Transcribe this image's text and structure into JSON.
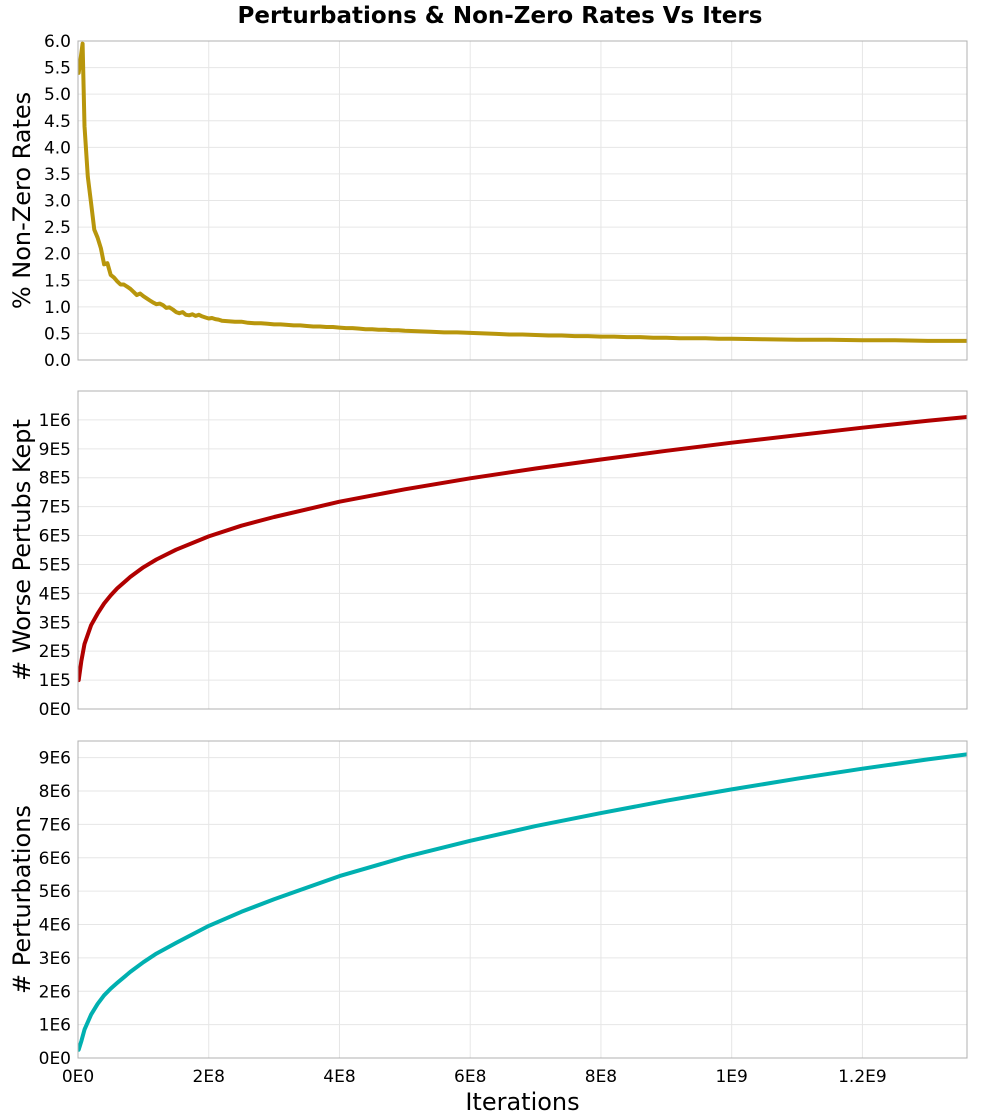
{
  "chart_data": {
    "title": "Perturbations & Non-Zero Rates Vs Iters",
    "xlabel": "Iterations",
    "x_ticks": [
      {
        "value": 0,
        "label": "0E0"
      },
      {
        "value": 200000000,
        "label": "2E8"
      },
      {
        "value": 400000000,
        "label": "4E8"
      },
      {
        "value": 600000000,
        "label": "6E8"
      },
      {
        "value": 800000000,
        "label": "8E8"
      },
      {
        "value": 1000000000,
        "label": "1E9"
      },
      {
        "value": 1200000000,
        "label": "1.2E9"
      }
    ],
    "xlim": [
      0,
      1360000000
    ],
    "grid": true,
    "panels": [
      {
        "type": "line",
        "ylabel": "% Non-Zero Rates",
        "color": "#b8960c",
        "ylim": [
          0,
          6.0
        ],
        "y_ticks": [
          {
            "value": 0.0,
            "label": "0.0"
          },
          {
            "value": 0.5,
            "label": "0.5"
          },
          {
            "value": 1.0,
            "label": "1.0"
          },
          {
            "value": 1.5,
            "label": "1.5"
          },
          {
            "value": 2.0,
            "label": "2.0"
          },
          {
            "value": 2.5,
            "label": "2.5"
          },
          {
            "value": 3.0,
            "label": "3.0"
          },
          {
            "value": 3.5,
            "label": "3.5"
          },
          {
            "value": 4.0,
            "label": "4.0"
          },
          {
            "value": 4.5,
            "label": "4.5"
          },
          {
            "value": 5.0,
            "label": "5.0"
          },
          {
            "value": 5.5,
            "label": "5.5"
          },
          {
            "value": 6.0,
            "label": "6.0"
          }
        ],
        "x": [
          1000000,
          7000000,
          10000000,
          15000000,
          20000000,
          25000000,
          30000000,
          35000000,
          40000000,
          45000000,
          50000000,
          55000000,
          60000000,
          65000000,
          70000000,
          75000000,
          80000000,
          85000000,
          90000000,
          95000000,
          100000000,
          105000000,
          110000000,
          115000000,
          120000000,
          125000000,
          130000000,
          135000000,
          140000000,
          145000000,
          150000000,
          155000000,
          160000000,
          165000000,
          170000000,
          175000000,
          180000000,
          185000000,
          190000000,
          195000000,
          200000000,
          205000000,
          210000000,
          215000000,
          220000000,
          230000000,
          240000000,
          250000000,
          260000000,
          270000000,
          280000000,
          290000000,
          300000000,
          310000000,
          320000000,
          330000000,
          340000000,
          350000000,
          360000000,
          370000000,
          380000000,
          390000000,
          400000000,
          410000000,
          420000000,
          430000000,
          440000000,
          450000000,
          460000000,
          470000000,
          480000000,
          490000000,
          500000000,
          520000000,
          540000000,
          560000000,
          580000000,
          600000000,
          620000000,
          640000000,
          660000000,
          680000000,
          700000000,
          720000000,
          740000000,
          760000000,
          780000000,
          800000000,
          820000000,
          840000000,
          860000000,
          880000000,
          900000000,
          920000000,
          940000000,
          960000000,
          980000000,
          1000000000,
          1050000000,
          1100000000,
          1150000000,
          1200000000,
          1250000000,
          1300000000,
          1360000000
        ],
        "y": [
          5.4,
          5.95,
          4.4,
          3.45,
          2.95,
          2.45,
          2.3,
          2.1,
          1.8,
          1.82,
          1.6,
          1.55,
          1.48,
          1.42,
          1.42,
          1.38,
          1.34,
          1.28,
          1.22,
          1.25,
          1.2,
          1.16,
          1.12,
          1.08,
          1.05,
          1.06,
          1.03,
          0.98,
          0.99,
          0.95,
          0.9,
          0.88,
          0.9,
          0.85,
          0.84,
          0.86,
          0.83,
          0.85,
          0.82,
          0.8,
          0.78,
          0.79,
          0.77,
          0.76,
          0.74,
          0.73,
          0.72,
          0.72,
          0.7,
          0.69,
          0.69,
          0.68,
          0.67,
          0.67,
          0.66,
          0.65,
          0.65,
          0.64,
          0.63,
          0.63,
          0.62,
          0.62,
          0.61,
          0.6,
          0.6,
          0.59,
          0.58,
          0.58,
          0.57,
          0.57,
          0.56,
          0.56,
          0.55,
          0.54,
          0.53,
          0.52,
          0.52,
          0.51,
          0.5,
          0.49,
          0.48,
          0.48,
          0.47,
          0.46,
          0.46,
          0.45,
          0.45,
          0.44,
          0.44,
          0.43,
          0.43,
          0.42,
          0.42,
          0.41,
          0.41,
          0.41,
          0.4,
          0.4,
          0.39,
          0.38,
          0.38,
          0.37,
          0.37,
          0.36,
          0.36
        ]
      },
      {
        "type": "line",
        "ylabel": "# Worse Pertubs Kept",
        "color": "#b00000",
        "ylim": [
          0,
          1100000
        ],
        "y_ticks": [
          {
            "value": 0,
            "label": "0E0"
          },
          {
            "value": 100000,
            "label": "1E5"
          },
          {
            "value": 200000,
            "label": "2E5"
          },
          {
            "value": 300000,
            "label": "3E5"
          },
          {
            "value": 400000,
            "label": "4E5"
          },
          {
            "value": 500000,
            "label": "5E5"
          },
          {
            "value": 600000,
            "label": "6E5"
          },
          {
            "value": 700000,
            "label": "7E5"
          },
          {
            "value": 800000,
            "label": "8E5"
          },
          {
            "value": 900000,
            "label": "9E5"
          },
          {
            "value": 1000000,
            "label": "1E6"
          }
        ],
        "x": [
          1000000,
          5000000,
          10000000,
          20000000,
          30000000,
          40000000,
          50000000,
          60000000,
          80000000,
          100000000,
          120000000,
          150000000,
          200000000,
          250000000,
          300000000,
          400000000,
          500000000,
          600000000,
          700000000,
          800000000,
          900000000,
          1000000000,
          1100000000,
          1200000000,
          1300000000,
          1360000000
        ],
        "y": [
          100000,
          165000,
          225000,
          290000,
          330000,
          365000,
          393000,
          417000,
          457000,
          490000,
          517000,
          551000,
          597000,
          634000,
          664000,
          717000,
          760000,
          798000,
          832000,
          863000,
          893000,
          921000,
          947000,
          973000,
          997000,
          1010000
        ]
      },
      {
        "type": "line",
        "ylabel": "# Perturbations",
        "color": "#00b0b0",
        "ylim": [
          0,
          9500000
        ],
        "y_ticks": [
          {
            "value": 0,
            "label": "0E0"
          },
          {
            "value": 1000000,
            "label": "1E6"
          },
          {
            "value": 2000000,
            "label": "2E6"
          },
          {
            "value": 3000000,
            "label": "3E6"
          },
          {
            "value": 4000000,
            "label": "4E6"
          },
          {
            "value": 5000000,
            "label": "5E6"
          },
          {
            "value": 6000000,
            "label": "6E6"
          },
          {
            "value": 7000000,
            "label": "7E6"
          },
          {
            "value": 8000000,
            "label": "8E6"
          },
          {
            "value": 9000000,
            "label": "9E6"
          }
        ],
        "x": [
          1000000,
          5000000,
          10000000,
          20000000,
          30000000,
          40000000,
          50000000,
          60000000,
          80000000,
          100000000,
          120000000,
          150000000,
          200000000,
          250000000,
          300000000,
          400000000,
          500000000,
          600000000,
          700000000,
          800000000,
          900000000,
          1000000000,
          1100000000,
          1200000000,
          1300000000,
          1360000000
        ],
        "y": [
          250000,
          500000,
          850000,
          1300000,
          1620000,
          1880000,
          2080000,
          2250000,
          2580000,
          2870000,
          3130000,
          3450000,
          3960000,
          4380000,
          4760000,
          5450000,
          6020000,
          6510000,
          6950000,
          7340000,
          7710000,
          8050000,
          8370000,
          8670000,
          8950000,
          9100000
        ]
      }
    ]
  }
}
